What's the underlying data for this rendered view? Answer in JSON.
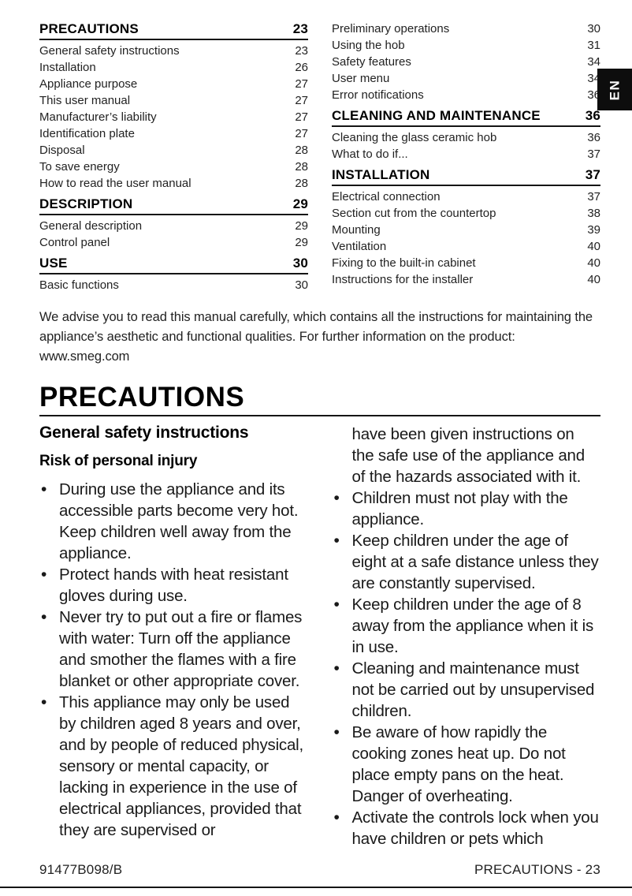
{
  "lang_tab": {
    "label": "EN"
  },
  "toc": {
    "left": [
      {
        "label": "PRECAUTIONS",
        "page": "23",
        "header": true
      },
      {
        "label": "General safety instructions",
        "page": "23"
      },
      {
        "label": "Installation",
        "page": "26"
      },
      {
        "label": "Appliance purpose",
        "page": "27"
      },
      {
        "label": "This user manual",
        "page": "27"
      },
      {
        "label": "Manufacturer’s liability",
        "page": "27"
      },
      {
        "label": "Identification plate",
        "page": "27"
      },
      {
        "label": "Disposal",
        "page": "28"
      },
      {
        "label": "To save energy",
        "page": "28"
      },
      {
        "label": "How to read the user manual",
        "page": "28"
      },
      {
        "label": "DESCRIPTION",
        "page": "29",
        "header": true
      },
      {
        "label": "General description",
        "page": "29"
      },
      {
        "label": "Control panel",
        "page": "29"
      },
      {
        "label": "USE",
        "page": "30",
        "header": true
      },
      {
        "label": "Basic functions",
        "page": "30"
      }
    ],
    "right": [
      {
        "label": "Preliminary operations",
        "page": "30"
      },
      {
        "label": "Using the hob",
        "page": "31"
      },
      {
        "label": "Safety features",
        "page": "34"
      },
      {
        "label": "User menu",
        "page": "34"
      },
      {
        "label": "Error notifications",
        "page": "36"
      },
      {
        "label": "CLEANING AND MAINTENANCE",
        "page": "36",
        "header": true
      },
      {
        "label": "Cleaning the glass ceramic hob",
        "page": "36"
      },
      {
        "label": "What to do if...",
        "page": "37"
      },
      {
        "label": "INSTALLATION",
        "page": "37",
        "header": true
      },
      {
        "label": "Electrical connection",
        "page": "37"
      },
      {
        "label": "Section cut from the countertop",
        "page": "38"
      },
      {
        "label": "Mounting",
        "page": "39"
      },
      {
        "label": "Ventilation",
        "page": "40"
      },
      {
        "label": "Fixing to the built-in cabinet",
        "page": "40"
      },
      {
        "label": "Instructions for the installer",
        "page": "40"
      }
    ]
  },
  "intro": "We advise you to read this manual carefully, which contains all the instructions for maintaining the appliance’s aesthetic and functional qualities. For further information on the product: www.smeg.com",
  "precautions": {
    "title": "PRECAUTIONS",
    "subsection_title": "General safety instructions",
    "subheading": "Risk of personal injury",
    "bullets_left": [
      "During use the appliance and its accessible parts become very hot. Keep children well away from the appliance.",
      "Protect hands with heat resistant gloves during use.",
      "Never try to put out a fire or flames with water: Turn off the appliance and smother the flames with a fire blanket or other appropriate cover.",
      "This appliance may only be used by children aged 8 years and over, and by people of reduced physical, sensory or mental capacity, or lacking in experience in the use of electrical appliances, provided that they are supervised or"
    ],
    "continuation_right": "have been given instructions on the safe use of the appliance and of the hazards associated with it.",
    "bullets_right": [
      "Children must not play with the appliance.",
      "Keep children under the age of eight at a safe distance unless they are constantly supervised.",
      "Keep children under the age of 8 away from the appliance when it is in use.",
      "Cleaning and maintenance must not be carried out by unsupervised children.",
      "Be aware of how rapidly the cooking zones heat up. Do not place empty pans on the heat. Danger of overheating.",
      "Activate the controls lock when you have children or pets which"
    ]
  },
  "footer": {
    "doc_code": "91477B098/B",
    "page_label": "PRECAUTIONS - 23"
  },
  "colors": {
    "text": "#1a1a1a",
    "rule": "#151515",
    "tab_bg": "#0d0d0d",
    "tab_text": "#ffffff"
  }
}
